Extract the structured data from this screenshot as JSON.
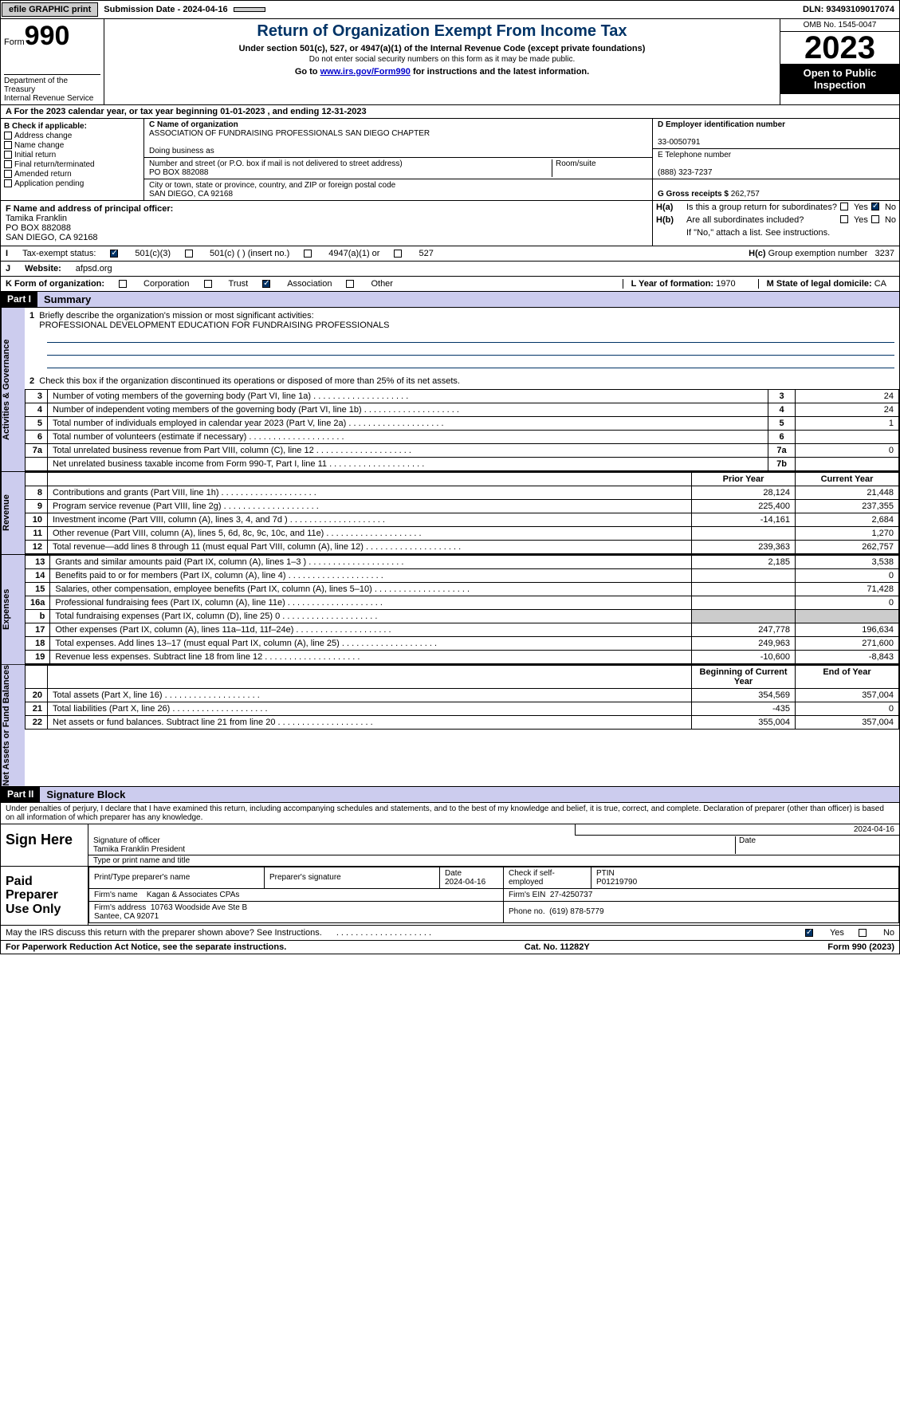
{
  "topbar": {
    "efile": "efile GRAPHIC print",
    "submission": "Submission Date - 2024-04-16",
    "dln": "DLN: 93493109017074"
  },
  "header": {
    "form_word": "Form",
    "form_num": "990",
    "dept": "Department of the Treasury\nInternal Revenue Service",
    "title": "Return of Organization Exempt From Income Tax",
    "sub1": "Under section 501(c), 527, or 4947(a)(1) of the Internal Revenue Code (except private foundations)",
    "sub2": "Do not enter social security numbers on this form as it may be made public.",
    "sub3_a": "Go to ",
    "sub3_link": "www.irs.gov/Form990",
    "sub3_b": " for instructions and the latest information.",
    "omb": "OMB No. 1545-0047",
    "year": "2023",
    "open": "Open to Public Inspection"
  },
  "A": {
    "text": "A For the 2023 calendar year, or tax year beginning 01-01-2023    , and ending 12-31-2023"
  },
  "B": {
    "label": "B Check if applicable:",
    "opts": [
      "Address change",
      "Name change",
      "Initial return",
      "Final return/terminated",
      "Amended return",
      "Application pending"
    ]
  },
  "C": {
    "name_label": "C Name of organization",
    "name": "ASSOCIATION OF FUNDRAISING PROFESSIONALS SAN DIEGO CHAPTER",
    "dba_label": "Doing business as",
    "addr_label": "Number and street (or P.O. box if mail is not delivered to street address)",
    "room_label": "Room/suite",
    "addr": "PO BOX 882088",
    "city_label": "City or town, state or province, country, and ZIP or foreign postal code",
    "city": "SAN DIEGO, CA  92168"
  },
  "D": {
    "label": "D Employer identification number",
    "value": "33-0050791"
  },
  "E": {
    "label": "E Telephone number",
    "value": "(888) 323-7237"
  },
  "G": {
    "label": "G Gross receipts $ ",
    "value": "262,757"
  },
  "F": {
    "label": "F  Name and address of principal officer:",
    "name": "Tamika Franklin",
    "addr1": "PO BOX 882088",
    "addr2": "SAN DIEGO, CA  92168"
  },
  "H": {
    "a": "Is this a group return for subordinates?",
    "b": "Are all subordinates included?",
    "note": "If \"No,\" attach a list. See instructions.",
    "c_label": "Group exemption number",
    "c_val": "3237",
    "yes": "Yes",
    "no": "No"
  },
  "I": {
    "label": "Tax-exempt status:",
    "o1": "501(c)(3)",
    "o2": "501(c) (  ) (insert no.)",
    "o3": "4947(a)(1) or",
    "o4": "527"
  },
  "J": {
    "label": "Website:",
    "value": "afpsd.org"
  },
  "K": {
    "label": "K Form of organization:",
    "o1": "Corporation",
    "o2": "Trust",
    "o3": "Association",
    "o4": "Other"
  },
  "L": {
    "label": "L Year of formation: ",
    "value": "1970"
  },
  "M": {
    "label": "M State of legal domicile: ",
    "value": "CA"
  },
  "part1": {
    "hdr": "Part I",
    "title": "Summary",
    "l1a": "Briefly describe the organization's mission or most significant activities:",
    "l1b": "PROFESSIONAL DEVELOPMENT EDUCATION FOR FUNDRAISING PROFESSIONALS",
    "l2": "Check this box       if the organization discontinued its operations or disposed of more than 25% of its net assets.",
    "side_ag": "Activities & Governance",
    "side_rev": "Revenue",
    "side_exp": "Expenses",
    "side_na": "Net Assets or Fund Balances",
    "rows_ag": [
      {
        "n": "3",
        "t": "Number of voting members of the governing body (Part VI, line 1a)",
        "ln": "3",
        "v": "24"
      },
      {
        "n": "4",
        "t": "Number of independent voting members of the governing body (Part VI, line 1b)",
        "ln": "4",
        "v": "24"
      },
      {
        "n": "5",
        "t": "Total number of individuals employed in calendar year 2023 (Part V, line 2a)",
        "ln": "5",
        "v": "1"
      },
      {
        "n": "6",
        "t": "Total number of volunteers (estimate if necessary)",
        "ln": "6",
        "v": ""
      },
      {
        "n": "7a",
        "t": "Total unrelated business revenue from Part VIII, column (C), line 12",
        "ln": "7a",
        "v": "0"
      },
      {
        "n": "",
        "t": "Net unrelated business taxable income from Form 990-T, Part I, line 11",
        "ln": "7b",
        "v": ""
      }
    ],
    "hdr_prior": "Prior Year",
    "hdr_curr": "Current Year",
    "rows_rev": [
      {
        "n": "8",
        "t": "Contributions and grants (Part VIII, line 1h)",
        "pv": "28,124",
        "v": "21,448"
      },
      {
        "n": "9",
        "t": "Program service revenue (Part VIII, line 2g)",
        "pv": "225,400",
        "v": "237,355"
      },
      {
        "n": "10",
        "t": "Investment income (Part VIII, column (A), lines 3, 4, and 7d )",
        "pv": "-14,161",
        "v": "2,684"
      },
      {
        "n": "11",
        "t": "Other revenue (Part VIII, column (A), lines 5, 6d, 8c, 9c, 10c, and 11e)",
        "pv": "",
        "v": "1,270"
      },
      {
        "n": "12",
        "t": "Total revenue—add lines 8 through 11 (must equal Part VIII, column (A), line 12)",
        "pv": "239,363",
        "v": "262,757"
      }
    ],
    "rows_exp": [
      {
        "n": "13",
        "t": "Grants and similar amounts paid (Part IX, column (A), lines 1–3 )",
        "pv": "2,185",
        "v": "3,538"
      },
      {
        "n": "14",
        "t": "Benefits paid to or for members (Part IX, column (A), line 4)",
        "pv": "",
        "v": "0"
      },
      {
        "n": "15",
        "t": "Salaries, other compensation, employee benefits (Part IX, column (A), lines 5–10)",
        "pv": "",
        "v": "71,428"
      },
      {
        "n": "16a",
        "t": "Professional fundraising fees (Part IX, column (A), line 11e)",
        "pv": "",
        "v": "0"
      },
      {
        "n": "b",
        "t": "Total fundraising expenses (Part IX, column (D), line 25) 0",
        "pv": "__grey__",
        "v": "__grey__"
      },
      {
        "n": "17",
        "t": "Other expenses (Part IX, column (A), lines 11a–11d, 11f–24e)",
        "pv": "247,778",
        "v": "196,634"
      },
      {
        "n": "18",
        "t": "Total expenses. Add lines 13–17 (must equal Part IX, column (A), line 25)",
        "pv": "249,963",
        "v": "271,600"
      },
      {
        "n": "19",
        "t": "Revenue less expenses. Subtract line 18 from line 12",
        "pv": "-10,600",
        "v": "-8,843"
      }
    ],
    "hdr_beg": "Beginning of Current Year",
    "hdr_end": "End of Year",
    "rows_na": [
      {
        "n": "20",
        "t": "Total assets (Part X, line 16)",
        "pv": "354,569",
        "v": "357,004"
      },
      {
        "n": "21",
        "t": "Total liabilities (Part X, line 26)",
        "pv": "-435",
        "v": "0"
      },
      {
        "n": "22",
        "t": "Net assets or fund balances. Subtract line 21 from line 20",
        "pv": "355,004",
        "v": "357,004"
      }
    ]
  },
  "part2": {
    "hdr": "Part II",
    "title": "Signature Block",
    "decl": "Under penalties of perjury, I declare that I have examined this return, including accompanying schedules and statements, and to the best of my knowledge and belief, it is true, correct, and complete. Declaration of preparer (other than officer) is based on all information of which preparer has any knowledge.",
    "sign_here": "Sign Here",
    "date": "2024-04-16",
    "sig_of": "Signature of officer",
    "sig_name": "Tamika Franklin  President",
    "sig_type": "Type or print name and title",
    "date_lbl": "Date",
    "paid": "Paid Preparer Use Only",
    "p_name_lbl": "Print/Type preparer's name",
    "p_sig_lbl": "Preparer's signature",
    "p_date": "2024-04-16",
    "p_check": "Check        if self-employed",
    "ptin_lbl": "PTIN",
    "ptin": "P01219790",
    "firm_name_lbl": "Firm's name",
    "firm_name": "Kagan & Associates CPAs",
    "firm_ein_lbl": "Firm's EIN",
    "firm_ein": "27-4250737",
    "firm_addr_lbl": "Firm's address",
    "firm_addr": "10763 Woodside Ave Ste B\nSantee, CA  92071",
    "phone_lbl": "Phone no.",
    "phone": "(619) 878-5779",
    "discuss": "May the IRS discuss this return with the preparer shown above? See Instructions.",
    "yes": "Yes",
    "no": "No"
  },
  "footer": {
    "l": "For Paperwork Reduction Act Notice, see the separate instructions.",
    "c": "Cat. No. 11282Y",
    "r": "Form 990 (2023)"
  }
}
